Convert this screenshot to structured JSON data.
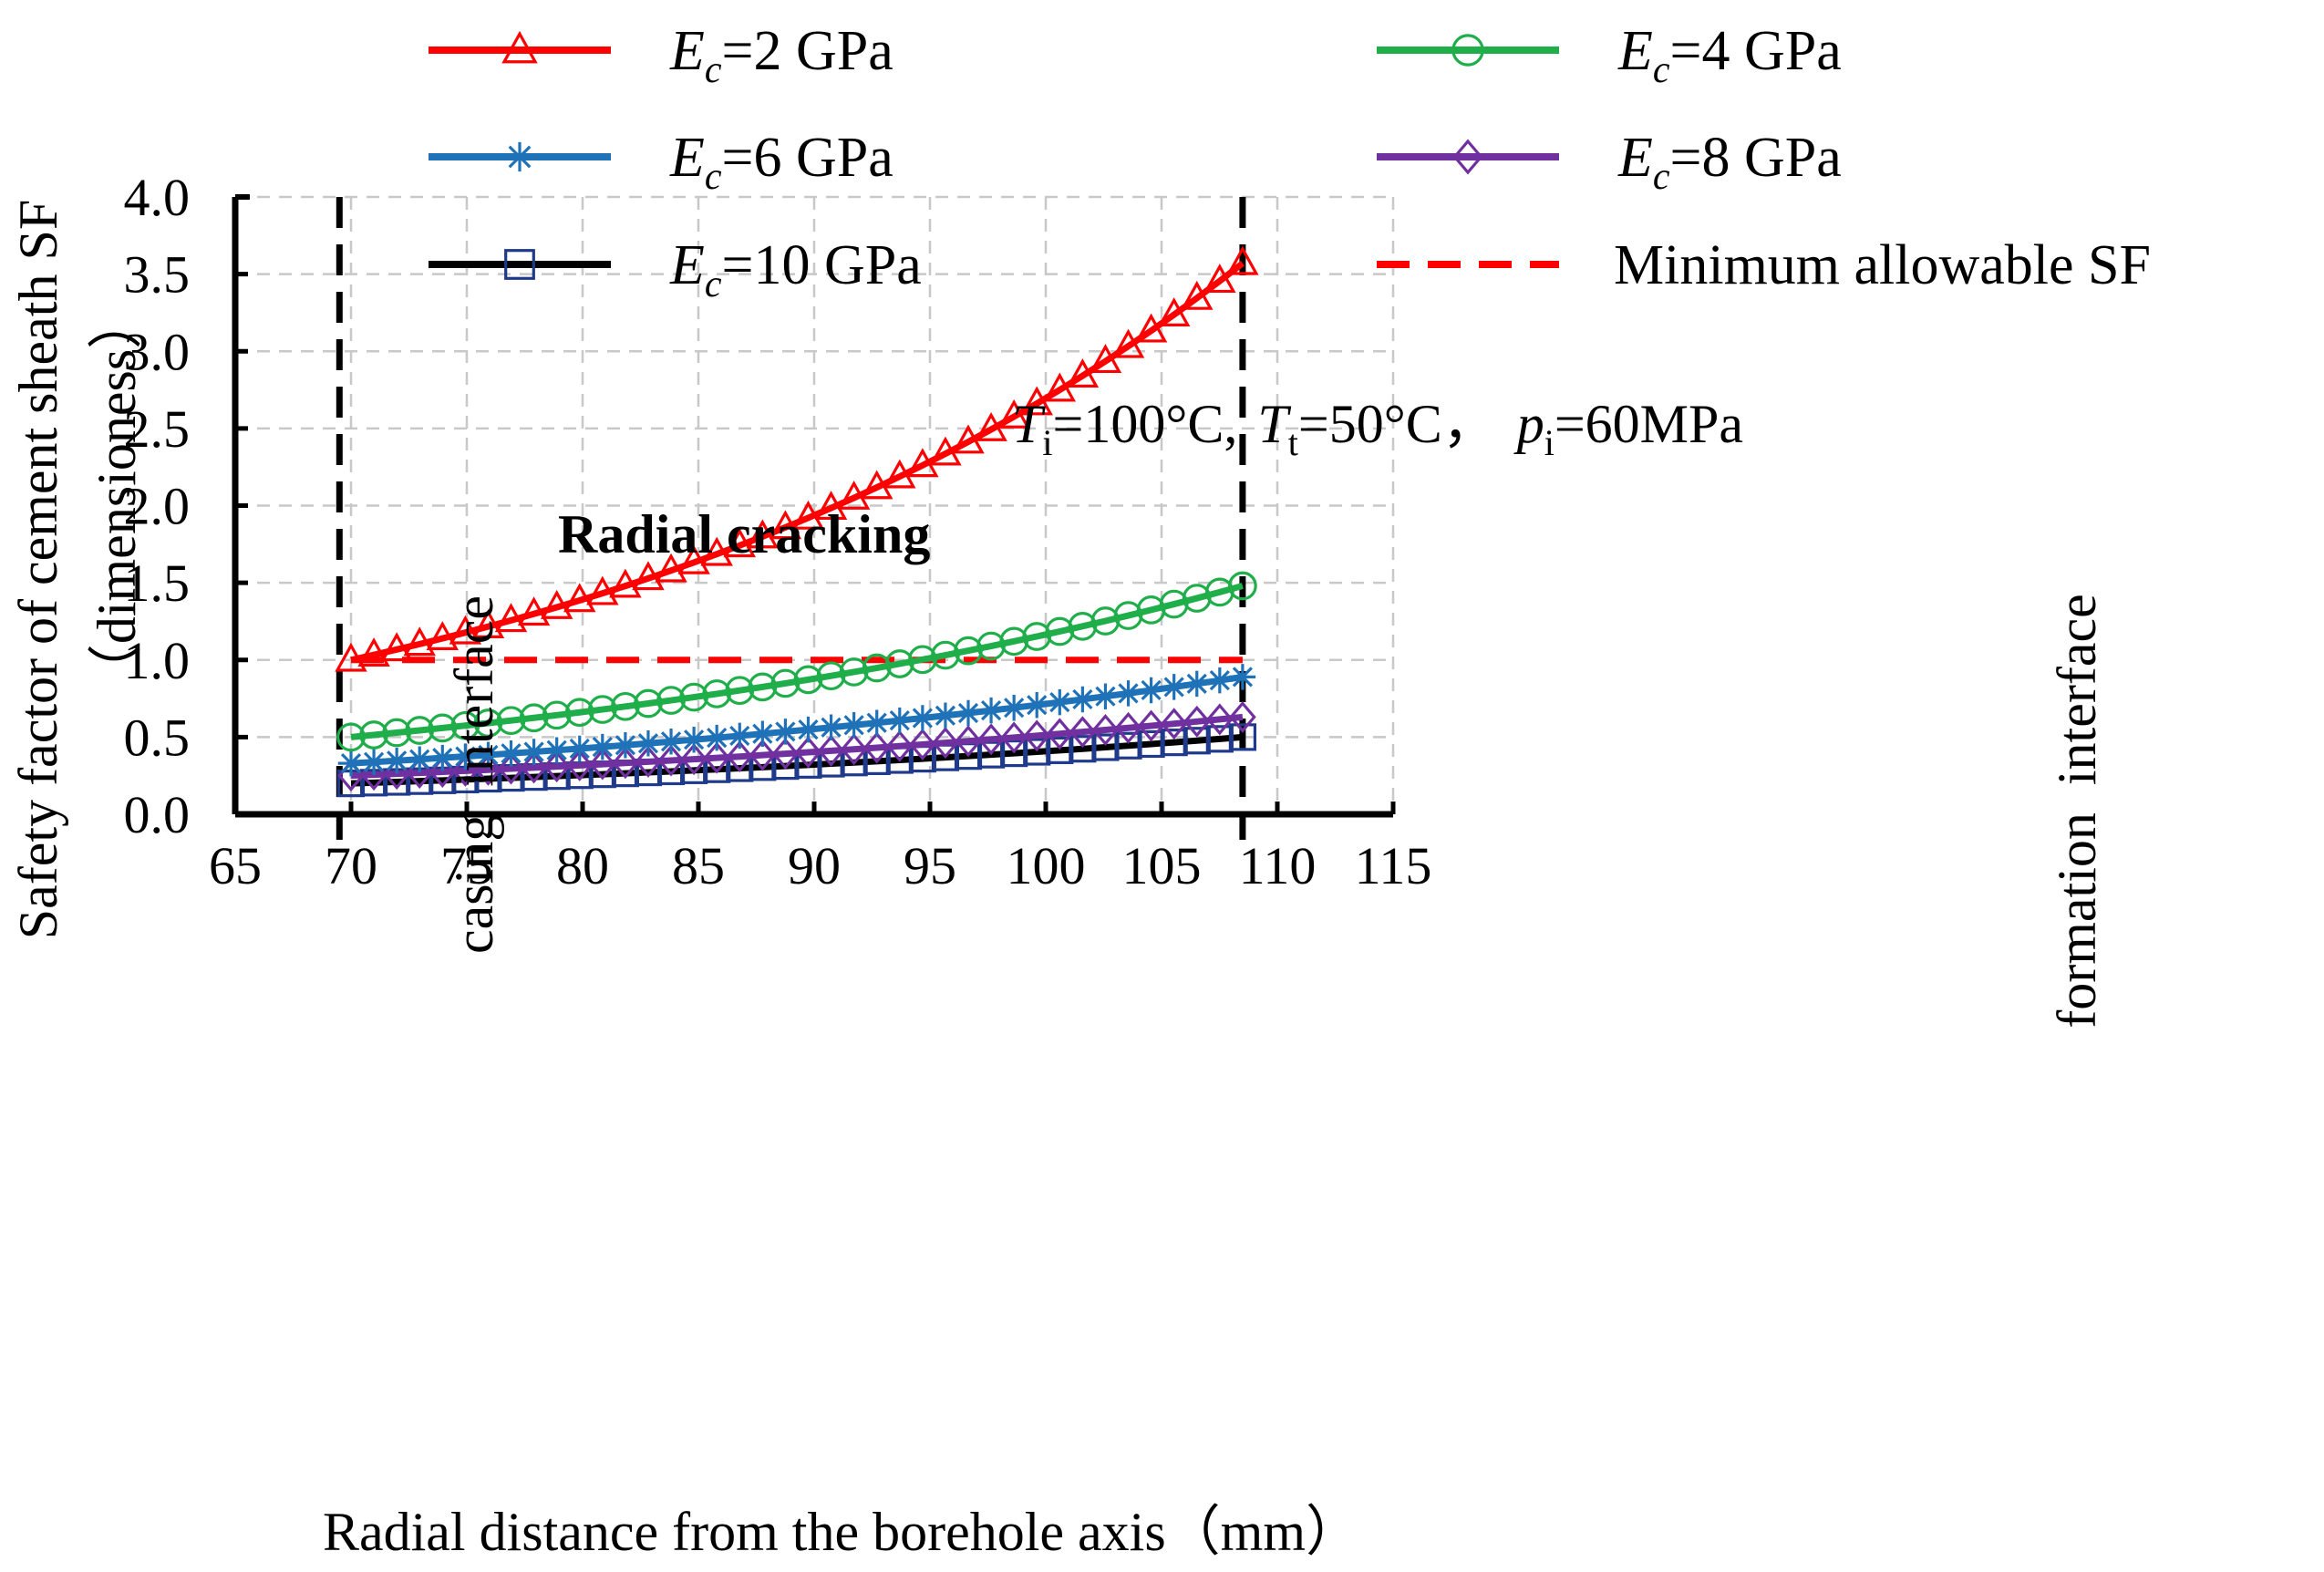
{
  "chart_data": {
    "type": "line",
    "title": "",
    "xlabel": "Radial distance from  the borehole axis（mm）",
    "ylabel_line1": "Safety factor of cement sheath SF",
    "ylabel_line2": "（dimensioness）",
    "xlim": [
      65,
      115
    ],
    "ylim": [
      0.0,
      4.0
    ],
    "xticks": [
      "65",
      "70",
      "75",
      "80",
      "85",
      "90",
      "95",
      "100",
      "105",
      "110",
      "115"
    ],
    "yticks": [
      "0.0",
      "0.5",
      "1.0",
      "1.5",
      "2.0",
      "2.5",
      "3.0",
      "3.5",
      "4.0"
    ],
    "grid": true,
    "x_range": [
      70,
      108.5
    ],
    "num_points": 40,
    "series": [
      {
        "name": "Ec=2 GPa",
        "label_prefix": "E",
        "label_sub": "c",
        "label_suffix": "=2 GPa",
        "color": "#ff0000",
        "marker": "triangle",
        "y_start": 1.0,
        "y_end": 3.57,
        "shape": "exponential"
      },
      {
        "name": "Ec=4 GPa",
        "label_prefix": "E",
        "label_sub": "c",
        "label_suffix": "=4 GPa",
        "color": "#1fae4a",
        "marker": "circle",
        "y_start": 0.5,
        "y_end": 1.48,
        "shape": "exponential"
      },
      {
        "name": "Ec=6 GPa",
        "label_prefix": "E",
        "label_sub": "c",
        "label_suffix": "=6 GPa",
        "color": "#1f72b8",
        "marker": "asterisk",
        "y_start": 0.33,
        "y_end": 0.89,
        "shape": "exponential"
      },
      {
        "name": "Ec=8 GPa",
        "label_prefix": "E",
        "label_sub": "c",
        "label_suffix": "=8 GPa",
        "color": "#7030a0",
        "marker": "diamond",
        "y_start": 0.25,
        "y_end": 0.63,
        "shape": "exponential"
      },
      {
        "name": "Ec=10 GPa",
        "label_prefix": "E",
        "label_sub": "c",
        "label_suffix": "=10 GPa",
        "color": "#000000",
        "marker_color": "#1f3a8a",
        "marker": "square",
        "y_start": 0.2,
        "y_end": 0.5,
        "shape": "exponential"
      }
    ],
    "reference_line": {
      "name": "Minimum allowable SF",
      "y": 1.0,
      "x_from": 70,
      "x_to": 108.5,
      "color": "#ff0000",
      "style": "dashed"
    },
    "vertical_lines": [
      {
        "x": 69.5,
        "label": "casing  interface"
      },
      {
        "x": 108.5,
        "label": "formation  interface"
      }
    ],
    "annotations": {
      "cracking": "Radial cracking",
      "conditions": [
        {
          "italic": "T",
          "sub": "i",
          "text": "=100°C,"
        },
        {
          "italic": "T",
          "sub": "t",
          "text": "=50°C，"
        },
        {
          "italic": "p",
          "sub": "i",
          "text": "=60MPa"
        }
      ]
    }
  }
}
